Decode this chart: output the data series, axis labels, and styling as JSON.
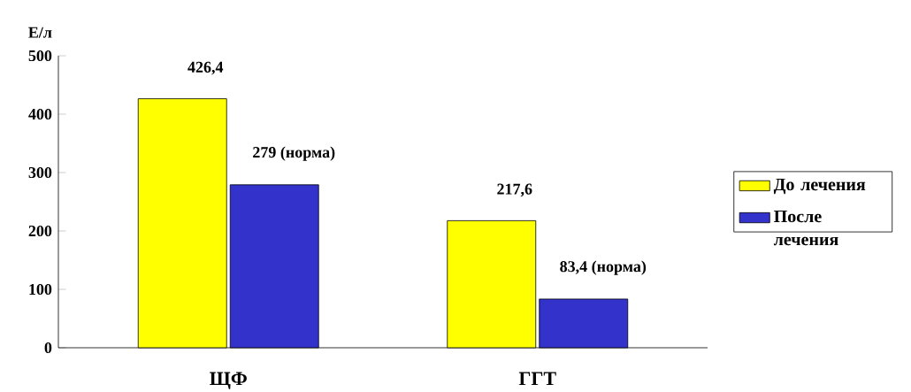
{
  "chart_data": {
    "type": "bar",
    "ylabel": "Е/л",
    "categories": [
      "ЩФ",
      "ГГТ"
    ],
    "series": [
      {
        "name": "До лечения",
        "color": "#ffff00",
        "values": [
          426.4,
          217.6
        ],
        "value_labels": [
          "426,4",
          "217,6"
        ]
      },
      {
        "name": "После лечения",
        "color": "#3333cc",
        "values": [
          279,
          83.4
        ],
        "value_labels": [
          "279 (норма)",
          "83,4 (норма)"
        ]
      }
    ],
    "ylim": [
      0,
      500
    ],
    "yticks": [
      0,
      100,
      200,
      300,
      400,
      500
    ],
    "grid": false,
    "legend": "right"
  }
}
